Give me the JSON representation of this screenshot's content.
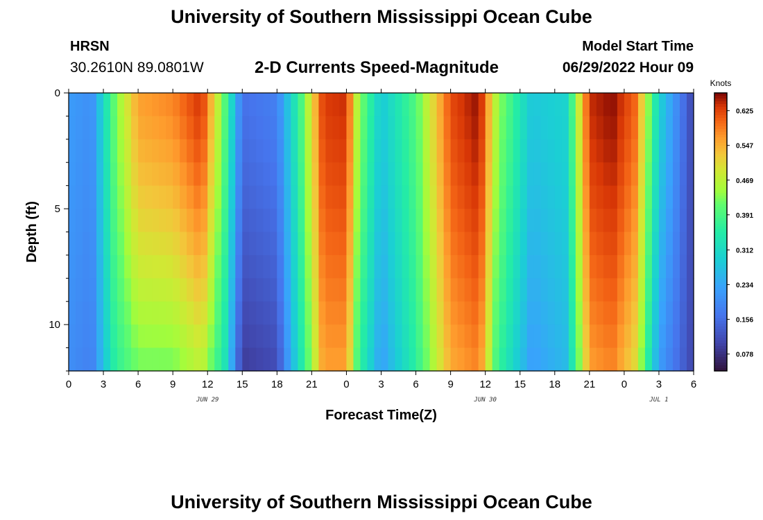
{
  "header": {
    "title": "University of Southern Mississippi Ocean Cube",
    "station": "HRSN",
    "coordinates": "30.2610N  89.0801W",
    "product": "2-D Currents Speed-Magnitude",
    "model_start_label": "Model Start Time",
    "model_start_value": "06/29/2022 Hour 09"
  },
  "footer": {
    "title": "University of Southern Mississippi Ocean Cube"
  },
  "chart_data": {
    "type": "heatmap",
    "title": "2-D Currents Speed-Magnitude",
    "xlabel": "Forecast Time(Z)",
    "ylabel": "Depth (ft)",
    "x_range_hours": [
      0,
      54
    ],
    "y_range_ft": [
      0,
      12
    ],
    "x_tick_labels": [
      "0",
      "3",
      "6",
      "9",
      "12",
      "15",
      "18",
      "21",
      "0",
      "3",
      "6",
      "9",
      "12",
      "15",
      "18",
      "21",
      "0",
      "3",
      "6"
    ],
    "y_tick_labels": [
      "0",
      "5",
      "10"
    ],
    "y_tick_values": [
      0,
      5,
      10
    ],
    "date_labels": [
      {
        "text": "JUN 29",
        "hour": 12
      },
      {
        "text": "JUN 30",
        "hour": 36
      },
      {
        "text": "JUL 1",
        "hour": 51
      }
    ],
    "colorbar": {
      "unit": "Knots",
      "ticks": [
        "0.625",
        "0.547",
        "0.469",
        "0.391",
        "0.312",
        "0.234",
        "0.156",
        "0.078"
      ],
      "min": 0.04,
      "max": 0.665
    },
    "speed_profile_knots": {
      "description": "approximate speed vs forecast hour (surface / bottom)",
      "hours": [
        0,
        2,
        4,
        6,
        9,
        11.5,
        13.5,
        15,
        18,
        20,
        22,
        24,
        25,
        27,
        30,
        33,
        35.5,
        37,
        40,
        43,
        45,
        47,
        49,
        51,
        54
      ],
      "surface": [
        0.22,
        0.2,
        0.42,
        0.56,
        0.58,
        0.64,
        0.4,
        0.16,
        0.18,
        0.38,
        0.63,
        0.64,
        0.45,
        0.28,
        0.4,
        0.62,
        0.66,
        0.45,
        0.28,
        0.3,
        0.64,
        0.66,
        0.6,
        0.3,
        0.1
      ],
      "bottom": [
        0.2,
        0.18,
        0.36,
        0.42,
        0.42,
        0.47,
        0.33,
        0.09,
        0.11,
        0.33,
        0.56,
        0.56,
        0.38,
        0.22,
        0.36,
        0.55,
        0.58,
        0.38,
        0.22,
        0.26,
        0.56,
        0.58,
        0.5,
        0.22,
        0.1
      ]
    }
  }
}
